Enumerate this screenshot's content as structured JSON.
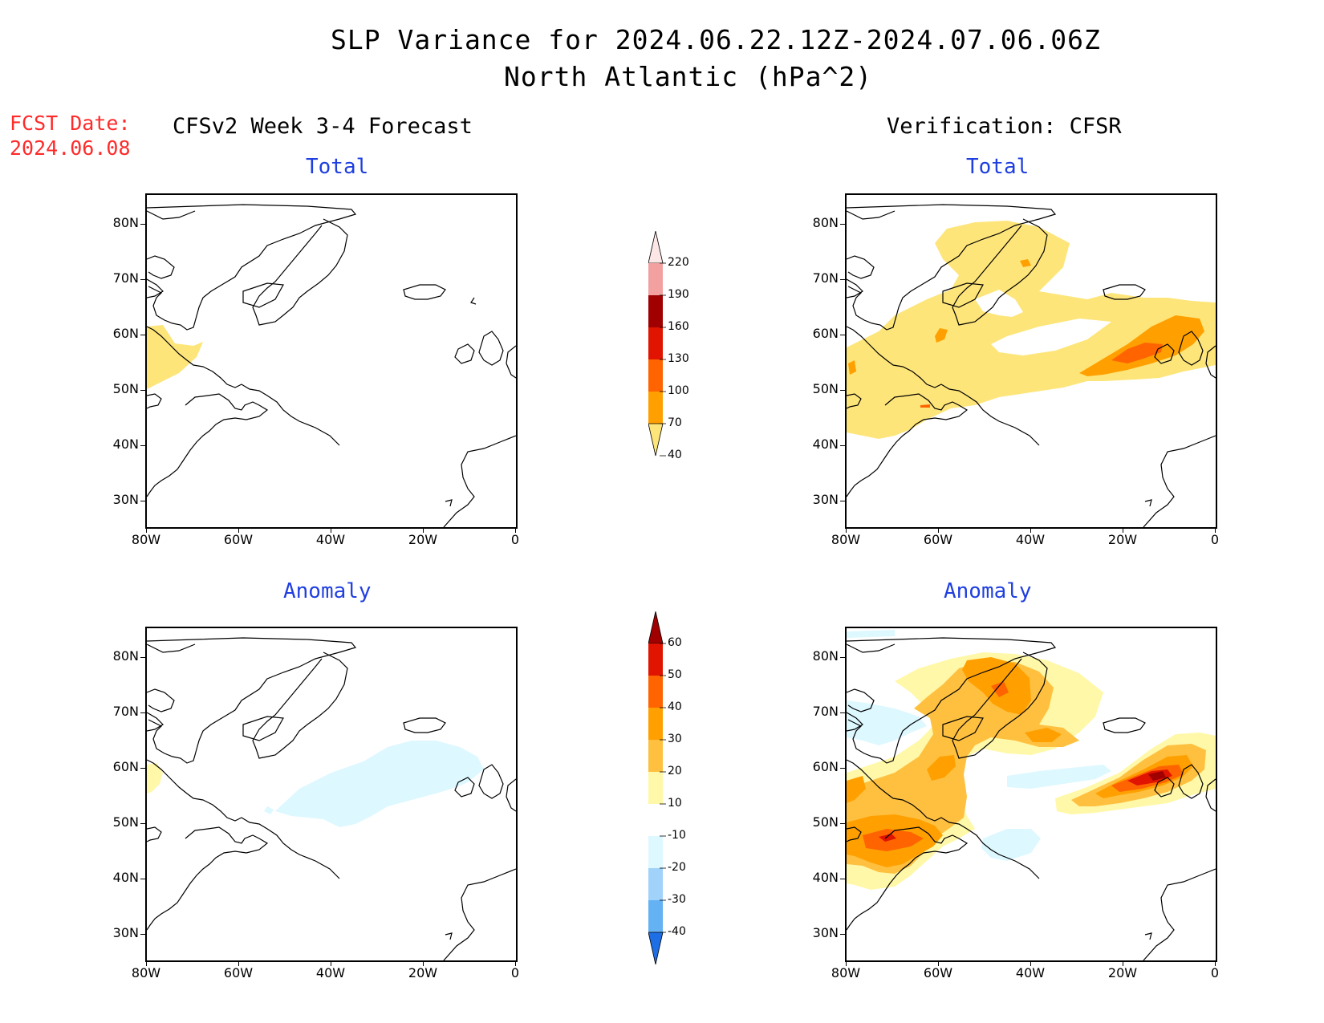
{
  "title": {
    "line1": "SLP Variance for 2024.06.22.12Z-2024.07.06.06Z",
    "line2": "North Atlantic (hPa^2)"
  },
  "fcst_date": {
    "label": "FCST Date:",
    "value": "2024.06.08"
  },
  "columns": {
    "left_header": "CFSv2 Week 3-4 Forecast",
    "right_header": "Verification: CFSR"
  },
  "panels": {
    "total_label": "Total",
    "anomaly_label": "Anomaly"
  },
  "axes": {
    "lat_labels": [
      "80N",
      "70N",
      "60N",
      "50N",
      "40N",
      "30N"
    ],
    "lon_labels": [
      "80W",
      "60W",
      "40W",
      "20W",
      "0"
    ]
  },
  "colorbar_total": {
    "levels": [
      "220",
      "190",
      "160",
      "130",
      "100",
      "70",
      "40"
    ],
    "colors": [
      "#fde6e6",
      "#f2a0a0",
      "#a00000",
      "#e01400",
      "#ff6400",
      "#ffa000",
      "#fee57a"
    ]
  },
  "colorbar_anomaly": {
    "levels": [
      "60",
      "50",
      "40",
      "30",
      "20",
      "10",
      "-10",
      "-20",
      "-30",
      "-40"
    ],
    "colors": [
      "#a00000",
      "#e01400",
      "#ff6400",
      "#ffa000",
      "#ffc040",
      "#fff8a8",
      "#ffffff",
      "#ddf8ff",
      "#a0d2fa",
      "#64b2f4",
      "#1e6ee6"
    ]
  },
  "colors": {
    "title_text": "#000000",
    "subtitle_blue": "#1f3fe0",
    "fcst_red": "#ff2a2a"
  }
}
